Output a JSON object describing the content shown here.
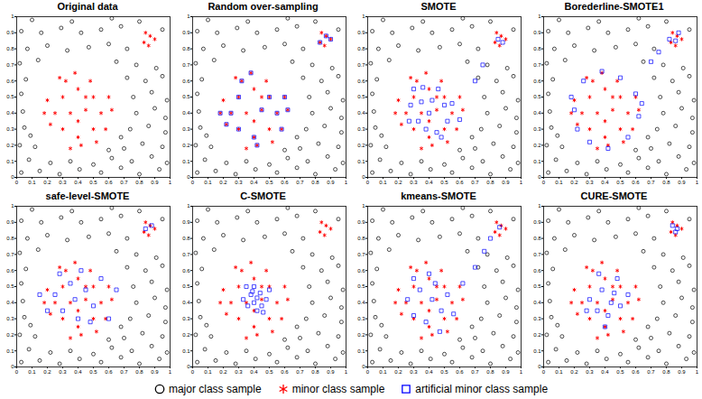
{
  "chart_data": {
    "type": "scatter",
    "xlim": [
      0,
      1
    ],
    "ylim": [
      0,
      1
    ],
    "xticks": [
      0,
      0.1,
      0.2,
      0.3,
      0.4,
      0.5,
      0.6,
      0.7,
      0.8,
      0.9,
      1
    ],
    "yticks": [
      0,
      0.1,
      0.2,
      0.3,
      0.4,
      0.5,
      0.6,
      0.7,
      0.8,
      0.9,
      1
    ],
    "legend": "bottom",
    "series": [
      {
        "name": "major class sample",
        "color": "#000000",
        "marker": "circle",
        "values": [
          [
            0.03,
            0.03
          ],
          [
            0.15,
            0.04
          ],
          [
            0.28,
            0.02
          ],
          [
            0.41,
            0.05
          ],
          [
            0.55,
            0.03
          ],
          [
            0.68,
            0.06
          ],
          [
            0.8,
            0.02
          ],
          [
            0.93,
            0.05
          ],
          [
            0.08,
            0.11
          ],
          [
            0.22,
            0.09
          ],
          [
            0.35,
            0.1
          ],
          [
            0.5,
            0.08
          ],
          [
            0.62,
            0.12
          ],
          [
            0.75,
            0.1
          ],
          [
            0.88,
            0.13
          ],
          [
            0.98,
            0.09
          ],
          [
            0.02,
            0.2
          ],
          [
            0.12,
            0.19
          ],
          [
            0.6,
            0.17
          ],
          [
            0.7,
            0.18
          ],
          [
            0.82,
            0.21
          ],
          [
            0.95,
            0.19
          ],
          [
            0.09,
            0.26
          ],
          [
            0.68,
            0.25
          ],
          [
            0.05,
            0.31
          ],
          [
            0.74,
            0.3
          ],
          [
            0.86,
            0.32
          ],
          [
            0.97,
            0.28
          ],
          [
            0.97,
            0.37
          ],
          [
            0.04,
            0.41
          ],
          [
            0.78,
            0.4
          ],
          [
            0.9,
            0.43
          ],
          [
            0.03,
            0.52
          ],
          [
            0.76,
            0.5
          ],
          [
            0.88,
            0.53
          ],
          [
            0.98,
            0.48
          ],
          [
            0.06,
            0.61
          ],
          [
            0.72,
            0.62
          ],
          [
            0.84,
            0.6
          ],
          [
            0.95,
            0.63
          ],
          [
            0.02,
            0.71
          ],
          [
            0.14,
            0.73
          ],
          [
            0.65,
            0.72
          ],
          [
            0.78,
            0.7
          ],
          [
            0.91,
            0.68
          ],
          [
            0.07,
            0.8
          ],
          [
            0.2,
            0.82
          ],
          [
            0.33,
            0.79
          ],
          [
            0.47,
            0.81
          ],
          [
            0.6,
            0.83
          ],
          [
            0.72,
            0.8
          ],
          [
            0.03,
            0.91
          ],
          [
            0.16,
            0.9
          ],
          [
            0.29,
            0.93
          ],
          [
            0.42,
            0.9
          ],
          [
            0.55,
            0.92
          ],
          [
            0.68,
            0.94
          ],
          [
            0.95,
            0.92
          ],
          [
            0.1,
            0.98
          ],
          [
            0.36,
            0.97
          ],
          [
            0.62,
            0.99
          ],
          [
            0.8,
            0.97
          ]
        ]
      },
      {
        "name": "minor class sample",
        "color": "#ff0000",
        "marker": "asterisk",
        "values": [
          [
            0.3,
            0.3
          ],
          [
            0.4,
            0.25
          ],
          [
            0.5,
            0.3
          ],
          [
            0.55,
            0.4
          ],
          [
            0.5,
            0.5
          ],
          [
            0.4,
            0.55
          ],
          [
            0.3,
            0.5
          ],
          [
            0.25,
            0.4
          ],
          [
            0.35,
            0.4
          ],
          [
            0.45,
            0.42
          ],
          [
            0.4,
            0.35
          ],
          [
            0.32,
            0.6
          ],
          [
            0.48,
            0.6
          ],
          [
            0.6,
            0.5
          ],
          [
            0.2,
            0.48
          ],
          [
            0.22,
            0.33
          ],
          [
            0.58,
            0.3
          ],
          [
            0.42,
            0.2
          ],
          [
            0.35,
            0.18
          ],
          [
            0.62,
            0.42
          ],
          [
            0.28,
            0.62
          ],
          [
            0.38,
            0.65
          ],
          [
            0.52,
            0.22
          ],
          [
            0.18,
            0.4
          ],
          [
            0.45,
            0.5
          ],
          [
            0.83,
            0.84
          ],
          [
            0.87,
            0.88
          ],
          [
            0.86,
            0.82
          ],
          [
            0.9,
            0.86
          ],
          [
            0.84,
            0.9
          ]
        ]
      }
    ],
    "panels": [
      {
        "title": "Original data",
        "series": []
      },
      {
        "title": "Random over-sampling",
        "series": [
          {
            "name": "artificial minor class sample",
            "color": "#0000ff",
            "marker": "square",
            "values": [
              [
                0.3,
                0.3
              ],
              [
                0.4,
                0.25
              ],
              [
                0.55,
                0.4
              ],
              [
                0.5,
                0.5
              ],
              [
                0.3,
                0.5
              ],
              [
                0.25,
                0.4
              ],
              [
                0.45,
                0.42
              ],
              [
                0.32,
                0.6
              ],
              [
                0.6,
                0.5
              ],
              [
                0.22,
                0.33
              ],
              [
                0.58,
                0.3
              ],
              [
                0.42,
                0.2
              ],
              [
                0.62,
                0.42
              ],
              [
                0.38,
                0.65
              ],
              [
                0.18,
                0.4
              ],
              [
                0.83,
                0.84
              ],
              [
                0.87,
                0.88
              ],
              [
                0.9,
                0.86
              ]
            ]
          }
        ]
      },
      {
        "title": "SMOTE",
        "series": [
          {
            "name": "artificial minor class sample",
            "color": "#0000ff",
            "marker": "square",
            "values": [
              [
                0.33,
                0.35
              ],
              [
                0.38,
                0.3
              ],
              [
                0.45,
                0.28
              ],
              [
                0.52,
                0.35
              ],
              [
                0.5,
                0.45
              ],
              [
                0.42,
                0.48
              ],
              [
                0.35,
                0.47
              ],
              [
                0.28,
                0.45
              ],
              [
                0.4,
                0.4
              ],
              [
                0.36,
                0.56
              ],
              [
                0.46,
                0.55
              ],
              [
                0.55,
                0.46
              ],
              [
                0.27,
                0.35
              ],
              [
                0.48,
                0.25
              ],
              [
                0.6,
                0.36
              ],
              [
                0.3,
                0.55
              ],
              [
                0.85,
                0.86
              ],
              [
                0.88,
                0.84
              ],
              [
                0.7,
                0.6
              ],
              [
                0.75,
                0.7
              ]
            ]
          }
        ]
      },
      {
        "title": "Borederline-SMOTE1",
        "series": [
          {
            "name": "artificial minor class sample",
            "color": "#0000ff",
            "marker": "square",
            "values": [
              [
                0.2,
                0.42
              ],
              [
                0.22,
                0.3
              ],
              [
                0.3,
                0.22
              ],
              [
                0.42,
                0.18
              ],
              [
                0.55,
                0.25
              ],
              [
                0.62,
                0.38
              ],
              [
                0.6,
                0.52
              ],
              [
                0.5,
                0.62
              ],
              [
                0.38,
                0.66
              ],
              [
                0.26,
                0.6
              ],
              [
                0.18,
                0.5
              ],
              [
                0.64,
                0.46
              ],
              [
                0.86,
                0.85
              ],
              [
                0.82,
                0.86
              ],
              [
                0.88,
                0.9
              ],
              [
                0.75,
                0.78
              ],
              [
                0.7,
                0.72
              ]
            ]
          }
        ]
      },
      {
        "title": "safe-level-SMOTE",
        "series": [
          {
            "name": "artificial minor class sample",
            "color": "#0000ff",
            "marker": "square",
            "values": [
              [
                0.3,
                0.35
              ],
              [
                0.4,
                0.3
              ],
              [
                0.5,
                0.38
              ],
              [
                0.45,
                0.48
              ],
              [
                0.35,
                0.52
              ],
              [
                0.25,
                0.45
              ],
              [
                0.55,
                0.55
              ],
              [
                0.42,
                0.6
              ],
              [
                0.2,
                0.35
              ],
              [
                0.6,
                0.3
              ],
              [
                0.38,
                0.42
              ],
              [
                0.48,
                0.28
              ],
              [
                0.28,
                0.58
              ],
              [
                0.15,
                0.45
              ],
              [
                0.65,
                0.48
              ],
              [
                0.88,
                0.88
              ],
              [
                0.84,
                0.86
              ]
            ]
          }
        ]
      },
      {
        "title": "C-SMOTE",
        "series": [
          {
            "name": "artificial minor class sample",
            "color": "#0000ff",
            "marker": "square",
            "values": [
              [
                0.4,
                0.4
              ],
              [
                0.42,
                0.43
              ],
              [
                0.38,
                0.45
              ],
              [
                0.45,
                0.38
              ],
              [
                0.36,
                0.38
              ],
              [
                0.44,
                0.46
              ],
              [
                0.4,
                0.5
              ],
              [
                0.48,
                0.42
              ],
              [
                0.33,
                0.42
              ],
              [
                0.42,
                0.35
              ],
              [
                0.5,
                0.48
              ],
              [
                0.35,
                0.5
              ],
              [
                0.46,
                0.34
              ],
              [
                0.39,
                0.47
              ]
            ]
          }
        ]
      },
      {
        "title": "kmeans-SMOTE",
        "series": [
          {
            "name": "artificial minor class sample",
            "color": "#0000ff",
            "marker": "square",
            "values": [
              [
                0.3,
                0.32
              ],
              [
                0.38,
                0.28
              ],
              [
                0.48,
                0.35
              ],
              [
                0.52,
                0.45
              ],
              [
                0.44,
                0.52
              ],
              [
                0.34,
                0.48
              ],
              [
                0.26,
                0.42
              ],
              [
                0.42,
                0.42
              ],
              [
                0.56,
                0.33
              ],
              [
                0.4,
                0.58
              ],
              [
                0.3,
                0.55
              ],
              [
                0.62,
                0.52
              ],
              [
                0.7,
                0.62
              ],
              [
                0.76,
                0.72
              ],
              [
                0.8,
                0.8
              ],
              [
                0.86,
                0.87
              ],
              [
                0.47,
                0.22
              ]
            ]
          }
        ]
      },
      {
        "title": "CURE-SMOTE",
        "series": [
          {
            "name": "artificial minor class sample",
            "color": "#0000ff",
            "marker": "square",
            "values": [
              [
                0.35,
                0.35
              ],
              [
                0.42,
                0.32
              ],
              [
                0.5,
                0.38
              ],
              [
                0.46,
                0.46
              ],
              [
                0.38,
                0.48
              ],
              [
                0.3,
                0.42
              ],
              [
                0.44,
                0.4
              ],
              [
                0.36,
                0.58
              ],
              [
                0.48,
                0.55
              ],
              [
                0.55,
                0.45
              ],
              [
                0.28,
                0.35
              ],
              [
                0.4,
                0.25
              ],
              [
                0.86,
                0.84
              ],
              [
                0.84,
                0.88
              ],
              [
                0.87,
                0.86
              ]
            ]
          }
        ]
      }
    ]
  }
}
